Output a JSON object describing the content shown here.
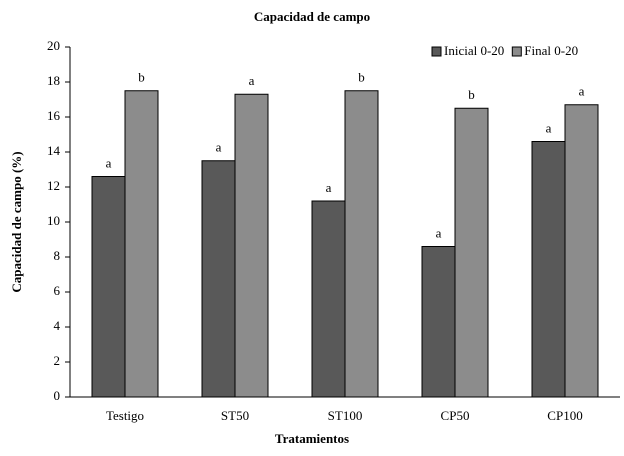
{
  "chart_data": {
    "type": "bar",
    "title": "Capacidad de campo",
    "x_label": "Tratamientos",
    "y_label": "Capacidad de campo (%)",
    "categories": [
      "Testigo",
      "ST50",
      "ST100",
      "CP50",
      "CP100"
    ],
    "series": [
      {
        "name": "Inicial 0-20",
        "color": "#595959",
        "values": [
          12.6,
          13.5,
          11.2,
          8.6,
          14.6
        ],
        "letters": [
          "a",
          "a",
          "a",
          "a",
          "a"
        ]
      },
      {
        "name": "Final 0-20",
        "color": "#8c8c8c",
        "values": [
          17.5,
          17.3,
          17.5,
          16.5,
          16.7
        ],
        "letters": [
          "b",
          "a",
          "b",
          "b",
          "a"
        ]
      }
    ],
    "ylim": [
      0,
      20
    ],
    "yticks": [
      0,
      2,
      4,
      6,
      8,
      10,
      12,
      14,
      16,
      18,
      20
    ],
    "grid": false,
    "legend": "top-right"
  }
}
